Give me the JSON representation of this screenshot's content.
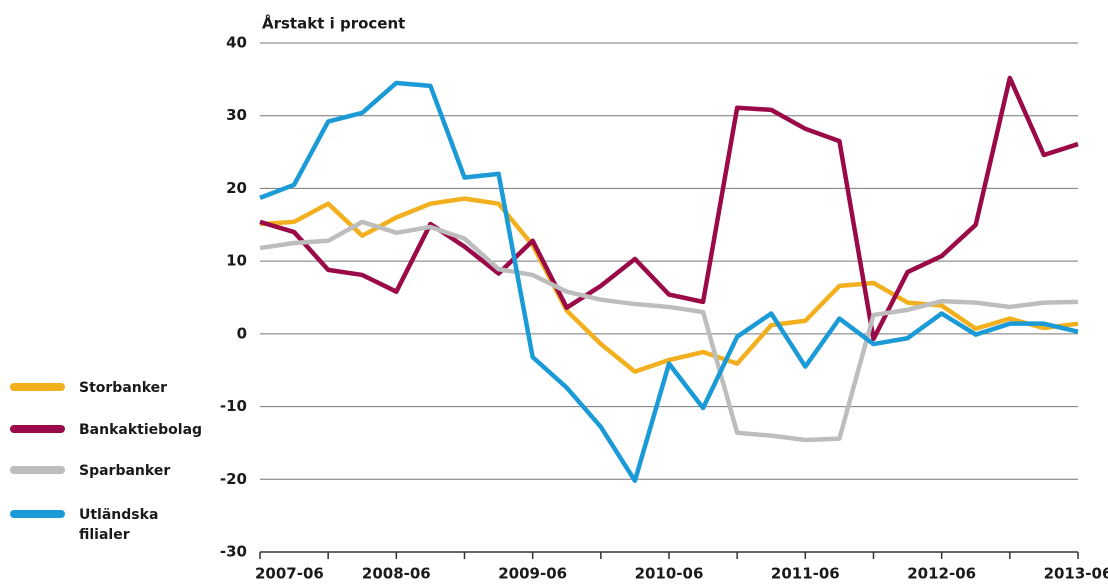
{
  "chart_data": {
    "type": "line",
    "y_label": "Årstakt i procent",
    "categories": [
      "2007-06",
      null,
      null,
      null,
      "2008-06",
      null,
      null,
      null,
      "2009-06",
      null,
      null,
      null,
      "2010-06",
      null,
      null,
      null,
      "2011-06",
      null,
      null,
      null,
      "2012-06",
      null,
      null,
      null,
      "2013-06"
    ],
    "series": [
      {
        "name": "Storbanker",
        "color": "#f2b01e",
        "values": [
          15.1,
          15.4,
          17.9,
          13.5,
          16.0,
          17.9,
          18.6,
          17.9,
          12.2,
          3.2,
          -1.4,
          -5.2,
          -3.6,
          -2.5,
          -4.1,
          1.2,
          1.8,
          6.6,
          7.0,
          4.3,
          3.9,
          0.7,
          2.1,
          0.8,
          1.4
        ]
      },
      {
        "name": "Bankaktiebolag",
        "color": "#9b0a48",
        "values": [
          15.4,
          14.0,
          8.8,
          8.1,
          5.8,
          15.1,
          12.0,
          8.3,
          12.8,
          3.6,
          6.6,
          10.3,
          5.4,
          4.4,
          31.1,
          30.8,
          28.2,
          26.5,
          -0.7,
          8.5,
          10.7,
          15.0,
          35.2,
          24.6,
          26.1
        ]
      },
      {
        "name": "Sparbanker",
        "color": "#bdbdbe",
        "values": [
          11.8,
          12.5,
          12.8,
          15.4,
          13.9,
          14.7,
          13.1,
          8.9,
          8.1,
          5.8,
          4.7,
          4.1,
          3.7,
          3.0,
          -13.6,
          -14.0,
          -14.6,
          -14.4,
          2.6,
          3.3,
          4.5,
          4.3,
          3.7,
          4.3,
          4.4
        ]
      },
      {
        "name": "Utländska filialer",
        "color": "#1a9ad6",
        "values": [
          18.7,
          20.5,
          29.2,
          30.4,
          34.5,
          34.1,
          21.5,
          22.0,
          -3.2,
          -7.4,
          -12.8,
          -20.2,
          -4.1,
          -10.2,
          -0.4,
          2.8,
          -4.5,
          2.1,
          -1.4,
          -0.6,
          2.8,
          -0.1,
          1.4,
          1.4,
          0.3
        ]
      }
    ],
    "ylim": [
      -30,
      40
    ],
    "yticks": [
      -30,
      -20,
      -10,
      0,
      10,
      20,
      30,
      40
    ],
    "grid": true
  }
}
